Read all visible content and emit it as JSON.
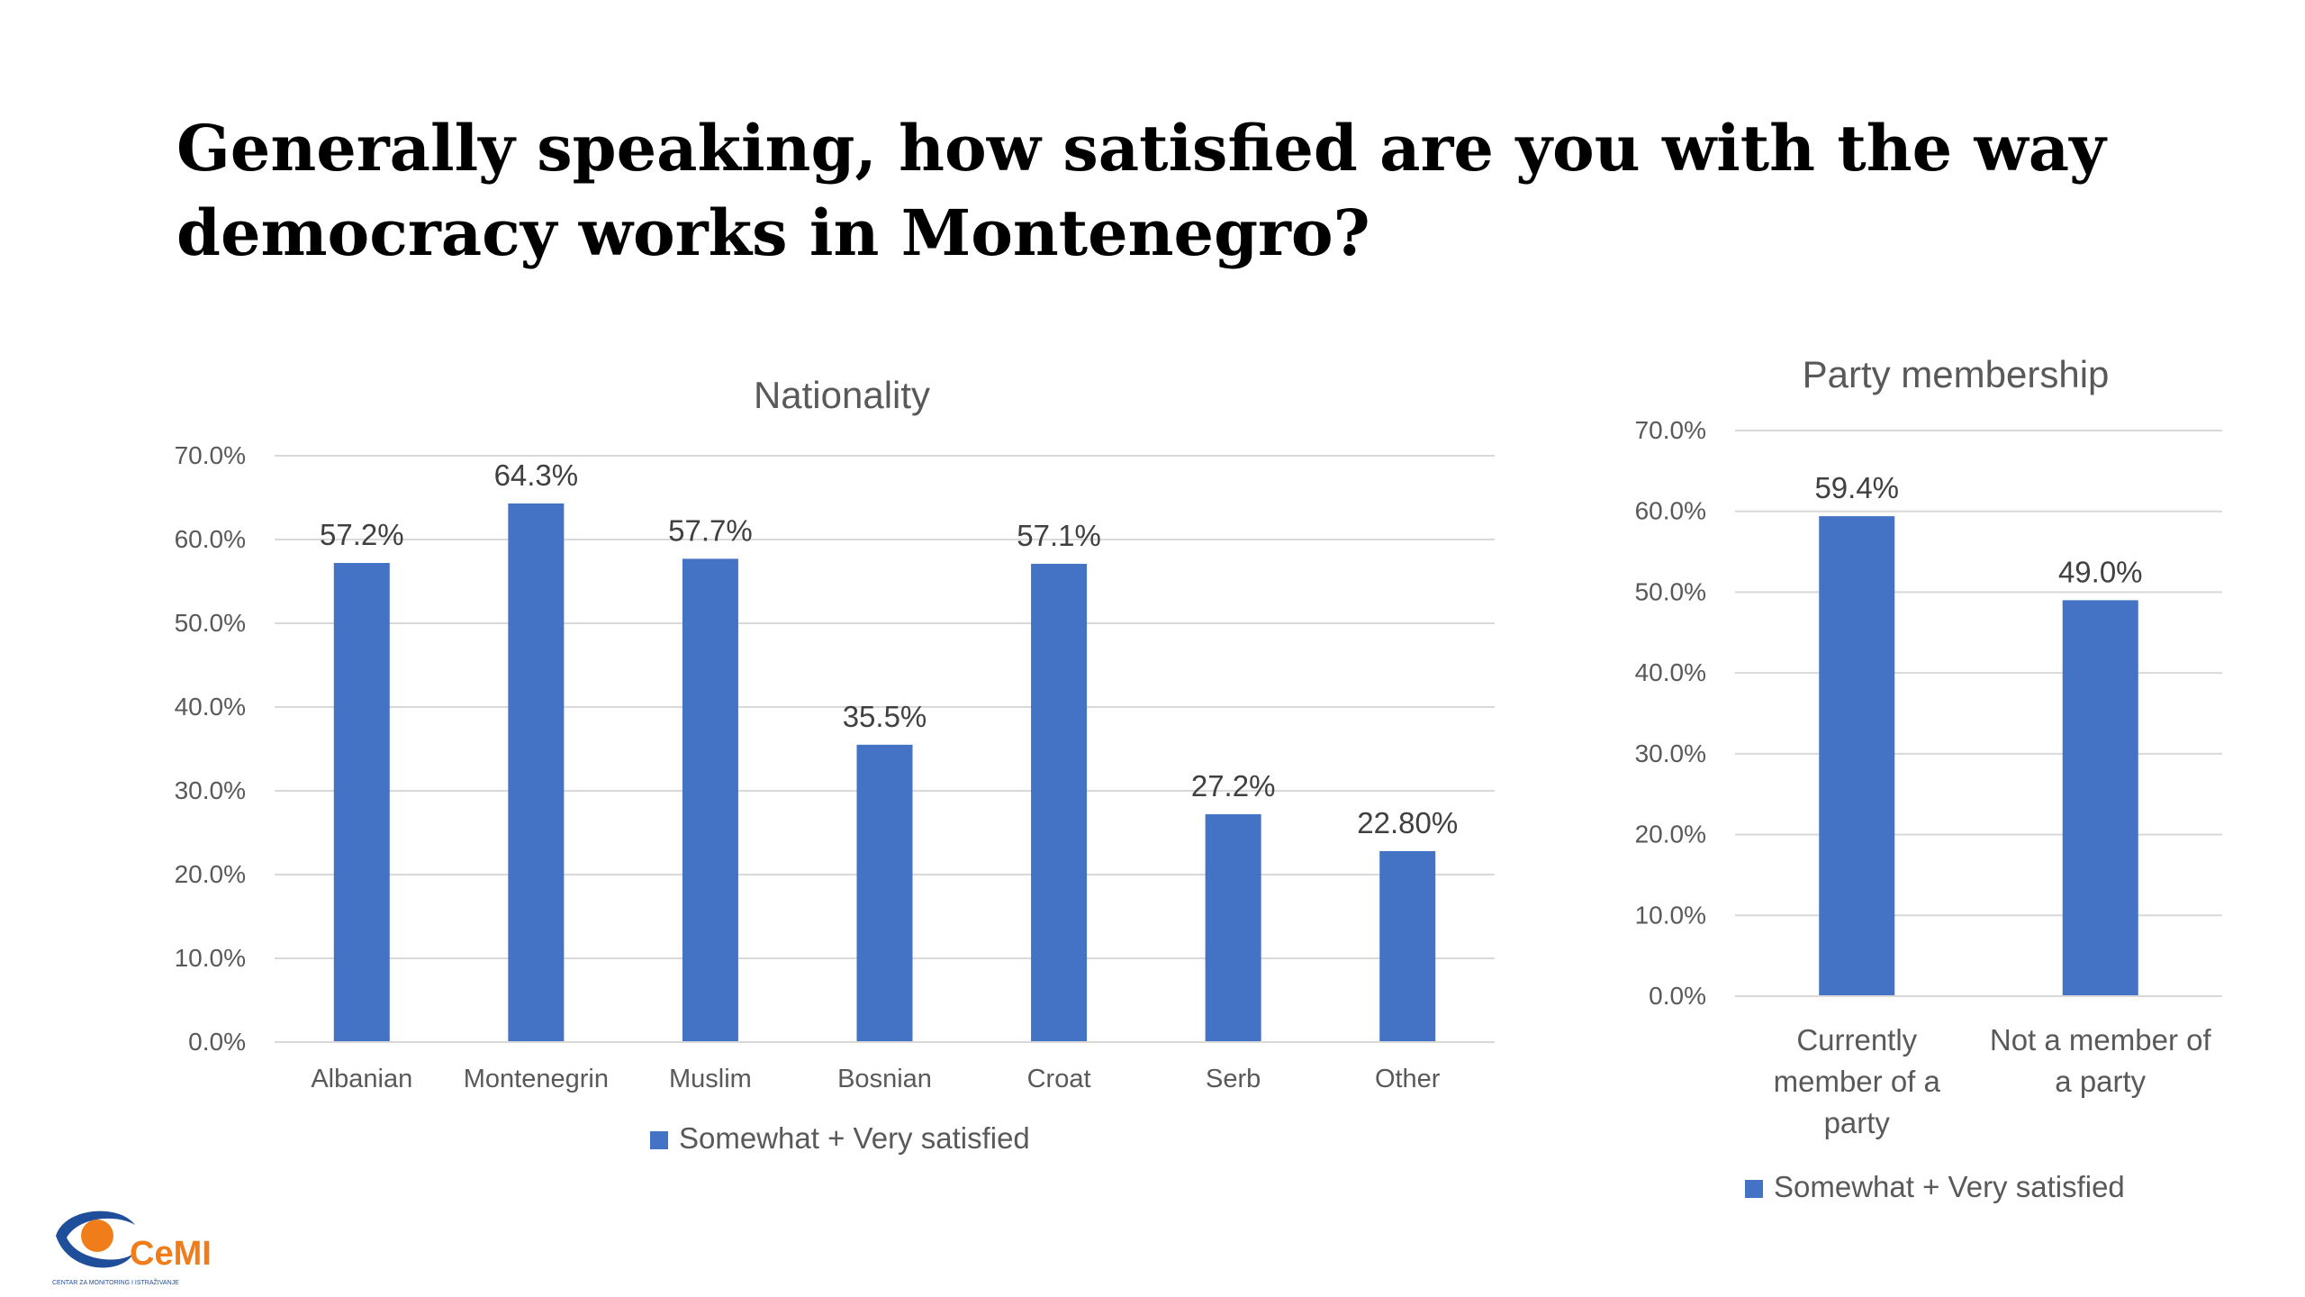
{
  "slide": {
    "title": "Generally speaking, how satisfied are you with the way democracy works in Montenegro?"
  },
  "colors": {
    "bar": "#4472C4",
    "grid": "#D9D9D9",
    "text": "#595959",
    "logo_blue": "#1F4E9A",
    "logo_orange": "#F07D1A"
  },
  "logo": {
    "text": "CeMI",
    "tagline": "CENTAR ZA MONITORING I ISTRAŽIVANJE"
  },
  "chart_data": [
    {
      "type": "bar",
      "title": "Nationality",
      "categories": [
        "Albanian",
        "Montenegrin",
        "Muslim",
        "Bosnian",
        "Croat",
        "Serb",
        "Other"
      ],
      "series": [
        {
          "name": "Somewhat + Very satisfied",
          "values": [
            57.2,
            64.3,
            57.7,
            35.5,
            57.1,
            27.2,
            22.8
          ],
          "labels": [
            "57.2%",
            "64.3%",
            "57.7%",
            "35.5%",
            "57.1%",
            "27.2%",
            "22.80%"
          ]
        }
      ],
      "ylim": [
        0,
        70
      ],
      "yticks": [
        "0.0%",
        "10.0%",
        "20.0%",
        "30.0%",
        "40.0%",
        "50.0%",
        "60.0%",
        "70.0%"
      ],
      "grid": true,
      "legend": "bottom"
    },
    {
      "type": "bar",
      "title": "Party membership",
      "categories": [
        [
          "Currently",
          "member of a",
          "party"
        ],
        [
          "Not a member of",
          "a party"
        ]
      ],
      "series": [
        {
          "name": "Somewhat + Very satisfied",
          "values": [
            59.4,
            49.0
          ],
          "labels": [
            "59.4%",
            "49.0%"
          ]
        }
      ],
      "ylim": [
        0,
        70
      ],
      "yticks": [
        "0.0%",
        "10.0%",
        "20.0%",
        "30.0%",
        "40.0%",
        "50.0%",
        "60.0%",
        "70.0%"
      ],
      "grid": true,
      "legend": "bottom"
    }
  ]
}
